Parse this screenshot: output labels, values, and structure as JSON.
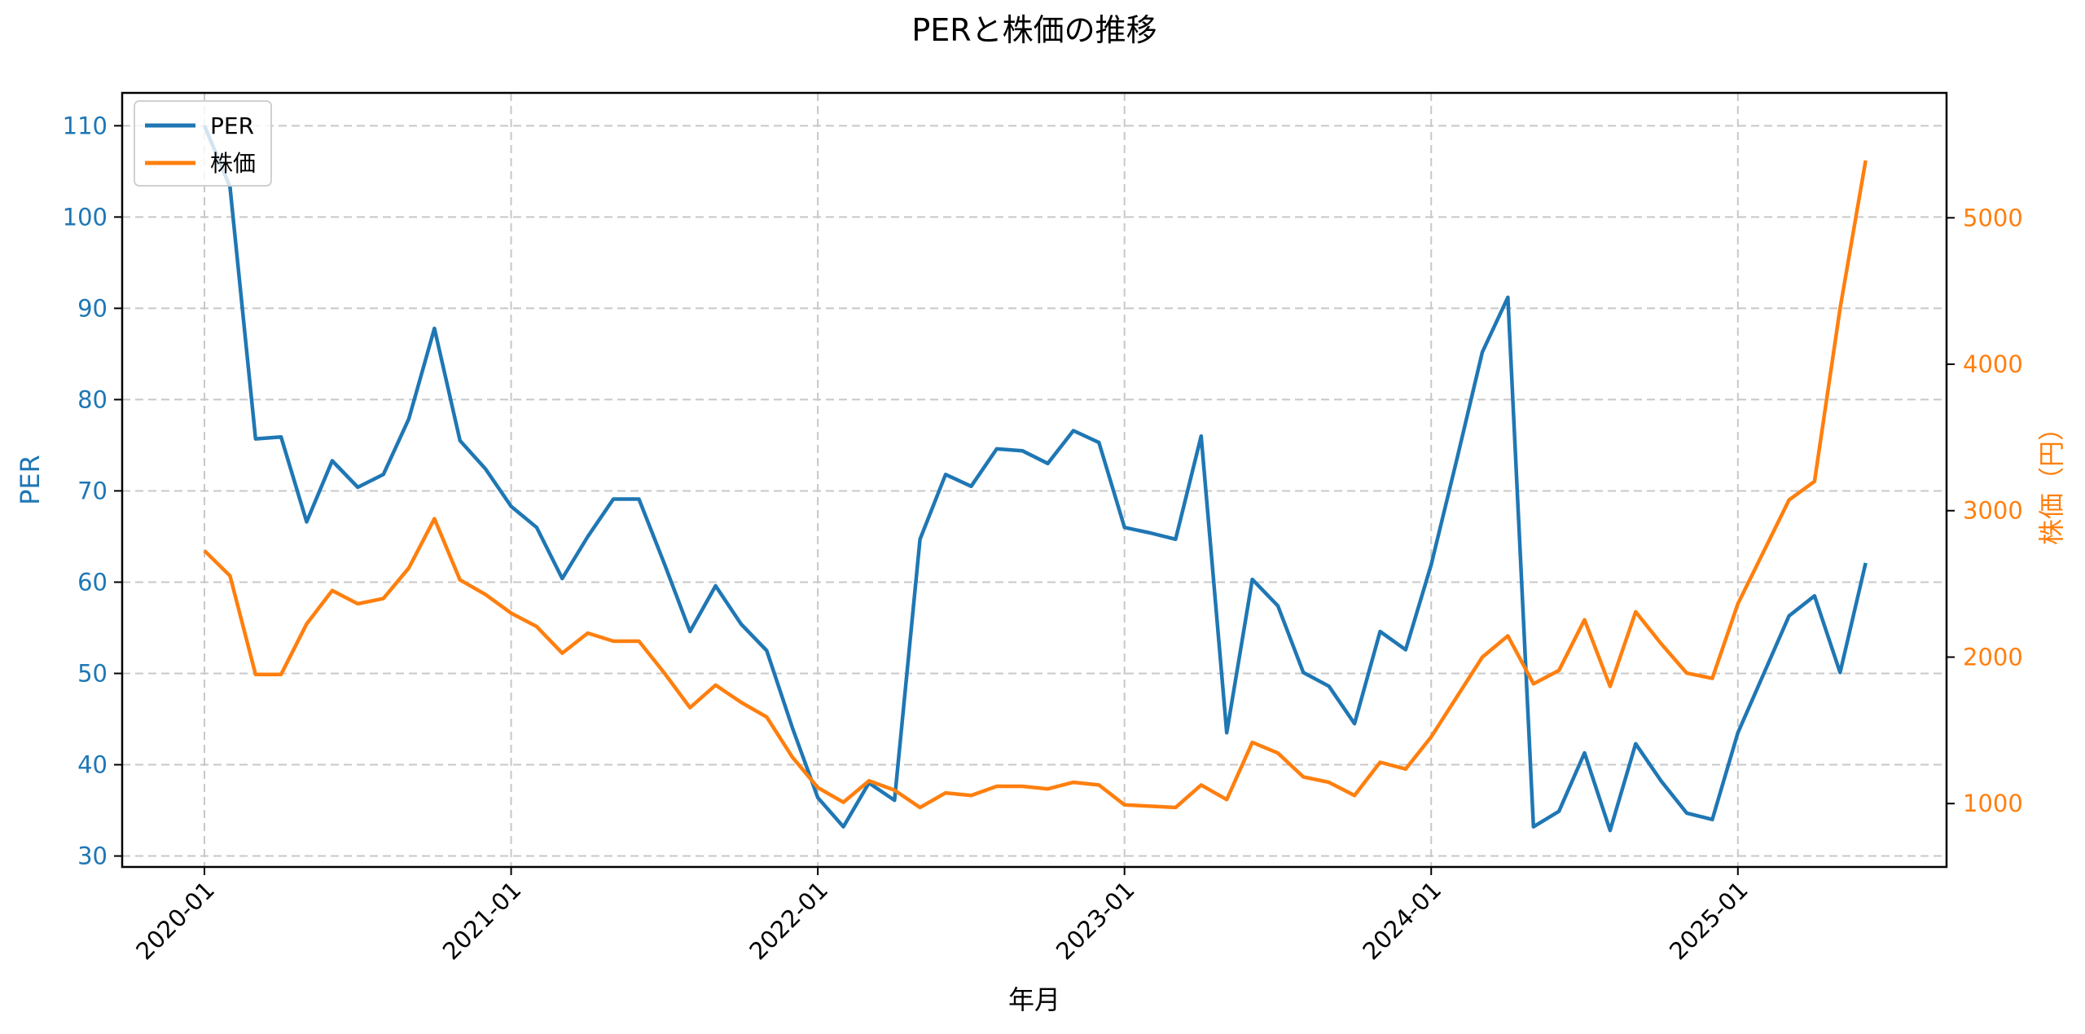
{
  "chart_data": {
    "type": "line",
    "title": "PERと株価の推移",
    "xlabel": "年月",
    "ylabel": "PER",
    "ylabel_right": "株価（円）",
    "ylim": [
      28.8,
      113.6
    ],
    "ylim_right": [
      567,
      5853
    ],
    "yticks": [
      30,
      40,
      50,
      60,
      70,
      80,
      90,
      100,
      110
    ],
    "yticks_right": [
      1000,
      2000,
      3000,
      4000,
      5000
    ],
    "xticks": [
      "2020-01",
      "2021-01",
      "2022-01",
      "2023-01",
      "2024-01",
      "2025-01"
    ],
    "grid": true,
    "legend_position": "upper left",
    "colors": {
      "PER": "#1f77b4",
      "株価": "#ff7f0e"
    },
    "x": [
      "2020-01",
      "2020-02",
      "2020-03",
      "2020-04",
      "2020-05",
      "2020-06",
      "2020-07",
      "2020-08",
      "2020-09",
      "2020-10",
      "2020-11",
      "2020-12",
      "2021-01",
      "2021-02",
      "2021-03",
      "2021-04",
      "2021-05",
      "2021-06",
      "2021-07",
      "2021-08",
      "2021-09",
      "2021-10",
      "2021-11",
      "2021-12",
      "2022-01",
      "2022-02",
      "2022-03",
      "2022-04",
      "2022-05",
      "2022-06",
      "2022-07",
      "2022-08",
      "2022-09",
      "2022-10",
      "2022-11",
      "2022-12",
      "2023-01",
      "2023-02",
      "2023-03",
      "2023-04",
      "2023-05",
      "2023-06",
      "2023-07",
      "2023-08",
      "2023-09",
      "2023-10",
      "2023-11",
      "2023-12",
      "2024-01",
      "2024-02",
      "2024-03",
      "2024-04",
      "2024-05",
      "2024-06",
      "2024-07",
      "2024-08",
      "2024-09",
      "2024-10",
      "2024-11",
      "2024-12",
      "2025-01",
      "2025-02",
      "2025-03",
      "2025-04",
      "2025-05",
      "2025-06"
    ],
    "series": [
      {
        "name": "PER",
        "axis": "left",
        "values": [
          110.0,
          103.3,
          75.7,
          75.9,
          66.6,
          73.3,
          70.4,
          71.8,
          77.9,
          87.8,
          75.5,
          72.4,
          68.3,
          66.0,
          60.4,
          65.0,
          69.1,
          69.1,
          62.0,
          54.6,
          59.6,
          55.4,
          52.5,
          44.1,
          36.4,
          33.2,
          38.0,
          36.1,
          64.7,
          71.8,
          70.5,
          74.6,
          74.4,
          73.0,
          76.6,
          75.3,
          66.0,
          65.4,
          64.7,
          76.0,
          43.5,
          60.3,
          57.4,
          50.1,
          48.6,
          44.5,
          54.6,
          52.6,
          61.9,
          73.4,
          85.2,
          91.2,
          33.2,
          34.9,
          41.3,
          32.8,
          42.3,
          38.2,
          34.7,
          34.0,
          43.5,
          49.9,
          56.3,
          58.5,
          50.1,
          62.1
        ]
      },
      {
        "name": "株価",
        "axis": "right",
        "values": [
          2727,
          2555,
          1882,
          1882,
          2227,
          2455,
          2364,
          2400,
          2609,
          2945,
          2527,
          2427,
          2300,
          2209,
          2027,
          2164,
          2109,
          2109,
          1891,
          1655,
          1809,
          1691,
          1591,
          1318,
          1109,
          1009,
          1155,
          1091,
          973,
          1073,
          1055,
          1118,
          1118,
          1100,
          1145,
          1127,
          991,
          982,
          973,
          1127,
          1027,
          1418,
          1345,
          1182,
          1145,
          1055,
          1282,
          1236,
          1455,
          1727,
          2000,
          2145,
          1818,
          1909,
          2255,
          1800,
          2309,
          2091,
          1891,
          1855,
          2364,
          2718,
          3073,
          3200,
          4382,
          5391
        ]
      }
    ]
  },
  "legend": {
    "items": [
      {
        "label": "PER"
      },
      {
        "label": "株価"
      }
    ]
  }
}
